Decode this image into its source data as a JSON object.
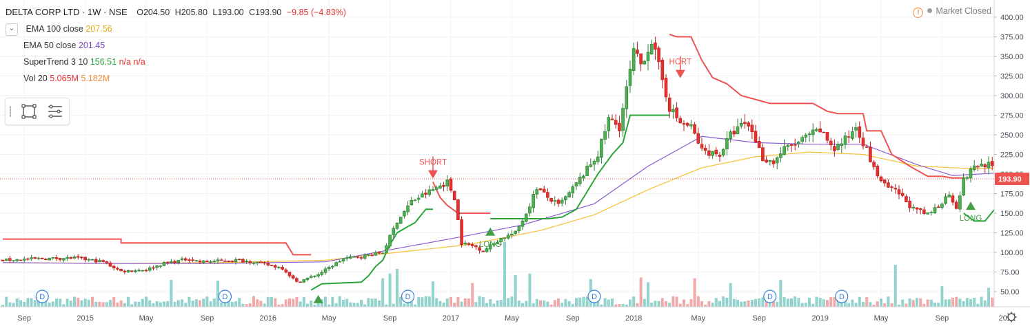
{
  "header": {
    "title": "DELTA CORP LTD · 1W · NSE",
    "open": "O204.50",
    "high": "H205.80",
    "low": "L193.00",
    "close": "C193.90",
    "change": "−9.85 (−4.83%)"
  },
  "indicators": {
    "ema100": {
      "label": "EMA 100 close",
      "value": "207.56"
    },
    "ema50": {
      "label": "EMA 50 close",
      "value": "201.45"
    },
    "supertrend": {
      "label": "SuperTrend 3 10",
      "value": "156.51",
      "na1": "n/a",
      "na2": "n/a"
    },
    "volume": {
      "label": "Vol 20",
      "value1": "5.065M",
      "value2": "5.182M"
    }
  },
  "market_status": {
    "icon": "warning-icon",
    "text": "Market Closed"
  },
  "toolbar": {
    "icons": [
      "drag-grip-icon",
      "rectangle-tool-icon",
      "list-settings-icon"
    ]
  },
  "chart_data": {
    "type": "candlestick",
    "price_axis": {
      "ticks": [
        "400.00",
        "375.00",
        "350.00",
        "325.00",
        "300.00",
        "275.00",
        "250.00",
        "225.00",
        "200.00",
        "175.00",
        "150.00",
        "125.00",
        "100.00",
        "75.00",
        "50.00"
      ],
      "tick_values": [
        400,
        375,
        350,
        325,
        300,
        275,
        250,
        225,
        200,
        175,
        150,
        125,
        100,
        75,
        50
      ],
      "range": [
        35,
        410
      ]
    },
    "time_axis": {
      "labels": [
        "Sep",
        "2015",
        "May",
        "Sep",
        "2016",
        "May",
        "Sep",
        "2017",
        "May",
        "Sep",
        "2018",
        "May",
        "Sep",
        "2019",
        "May",
        "Sep",
        "20"
      ],
      "label_weeks": [
        6,
        23,
        40,
        57,
        74,
        91,
        108,
        125,
        142,
        159,
        176,
        194,
        211,
        228,
        245,
        262,
        279
      ],
      "total_weeks": 285
    },
    "last_price": {
      "value": 193.9,
      "label": "193.90",
      "color": "#ef5350"
    },
    "colors": {
      "up": "#26a69a",
      "up_fill": "#4caf50",
      "down": "#e5312e",
      "ema100": "#f7c133",
      "ema50": "#8c5bd1",
      "supertrend_up": "#2aa43a",
      "supertrend_down": "#ef5350",
      "vol_up": "#80cbc4",
      "vol_down": "#ef9a9a"
    },
    "close_anchors": [
      [
        0,
        90
      ],
      [
        10,
        92
      ],
      [
        20,
        93
      ],
      [
        28,
        88
      ],
      [
        33,
        76
      ],
      [
        40,
        78
      ],
      [
        45,
        86
      ],
      [
        52,
        92
      ],
      [
        55,
        88
      ],
      [
        65,
        90
      ],
      [
        70,
        88
      ],
      [
        78,
        80
      ],
      [
        82,
        62
      ],
      [
        88,
        72
      ],
      [
        95,
        92
      ],
      [
        100,
        95
      ],
      [
        106,
        100
      ],
      [
        110,
        140
      ],
      [
        114,
        165
      ],
      [
        120,
        180
      ],
      [
        124,
        190
      ],
      [
        126,
        170
      ],
      [
        128,
        112
      ],
      [
        132,
        107
      ],
      [
        134,
        102
      ],
      [
        139,
        118
      ],
      [
        143,
        125
      ],
      [
        146,
        150
      ],
      [
        149,
        183
      ],
      [
        152,
        170
      ],
      [
        155,
        160
      ],
      [
        158,
        175
      ],
      [
        162,
        200
      ],
      [
        166,
        225
      ],
      [
        169,
        270
      ],
      [
        172,
        260
      ],
      [
        176,
        355
      ],
      [
        178,
        340
      ],
      [
        181,
        370
      ],
      [
        184,
        320
      ],
      [
        186,
        285
      ],
      [
        189,
        265
      ],
      [
        192,
        260
      ],
      [
        195,
        230
      ],
      [
        200,
        225
      ],
      [
        203,
        250
      ],
      [
        207,
        265
      ],
      [
        209,
        255
      ],
      [
        212,
        220
      ],
      [
        215,
        215
      ],
      [
        218,
        232
      ],
      [
        222,
        240
      ],
      [
        225,
        250
      ],
      [
        228,
        255
      ],
      [
        232,
        232
      ],
      [
        236,
        248
      ],
      [
        238,
        262
      ],
      [
        241,
        230
      ],
      [
        243,
        206
      ],
      [
        246,
        185
      ],
      [
        250,
        175
      ],
      [
        254,
        155
      ],
      [
        258,
        148
      ],
      [
        261,
        160
      ],
      [
        264,
        175
      ],
      [
        266,
        158
      ],
      [
        268,
        192
      ],
      [
        271,
        210
      ],
      [
        275,
        213
      ],
      [
        278,
        194
      ]
    ],
    "ema100": [
      [
        0,
        87
      ],
      [
        30,
        86
      ],
      [
        60,
        87
      ],
      [
        90,
        90
      ],
      [
        110,
        100
      ],
      [
        130,
        110
      ],
      [
        150,
        128
      ],
      [
        165,
        148
      ],
      [
        180,
        180
      ],
      [
        195,
        208
      ],
      [
        210,
        222
      ],
      [
        225,
        228
      ],
      [
        240,
        225
      ],
      [
        255,
        210
      ],
      [
        270,
        207
      ],
      [
        278,
        207.56
      ]
    ],
    "ema50": [
      [
        0,
        87
      ],
      [
        30,
        86
      ],
      [
        60,
        86
      ],
      [
        90,
        88
      ],
      [
        110,
        105
      ],
      [
        128,
        120
      ],
      [
        145,
        135
      ],
      [
        165,
        162
      ],
      [
        180,
        210
      ],
      [
        195,
        248
      ],
      [
        210,
        240
      ],
      [
        225,
        238
      ],
      [
        240,
        238
      ],
      [
        255,
        212
      ],
      [
        265,
        198
      ],
      [
        278,
        201.45
      ]
    ],
    "supertrend": [
      {
        "trend": "down",
        "points": [
          [
            0,
            117
          ],
          [
            33,
            117
          ],
          [
            33,
            112
          ],
          [
            70,
            112
          ],
          [
            79,
            112
          ],
          [
            81,
            97
          ],
          [
            86,
            97
          ]
        ]
      },
      {
        "trend": "up",
        "points": [
          [
            86,
            52
          ],
          [
            89,
            60
          ],
          [
            100,
            62
          ],
          [
            102,
            70
          ],
          [
            104,
            82
          ],
          [
            106,
            90
          ],
          [
            108,
            110
          ],
          [
            110,
            125
          ],
          [
            113,
            133
          ],
          [
            115,
            138
          ],
          [
            118,
            155
          ],
          [
            120,
            155
          ]
        ]
      },
      {
        "trend": "down",
        "points": [
          [
            120,
            190
          ],
          [
            122,
            170
          ],
          [
            124,
            160
          ],
          [
            127,
            150
          ],
          [
            136,
            150
          ]
        ]
      },
      {
        "trend": "up",
        "points": [
          [
            136,
            143
          ],
          [
            152,
            143
          ],
          [
            156,
            145
          ],
          [
            160,
            155
          ],
          [
            164,
            185
          ],
          [
            166,
            200
          ],
          [
            170,
            225
          ],
          [
            173,
            240
          ],
          [
            175,
            275
          ],
          [
            186,
            275
          ]
        ]
      },
      {
        "trend": "down",
        "points": [
          [
            186,
            378
          ],
          [
            188,
            375
          ],
          [
            192,
            375
          ],
          [
            195,
            345
          ],
          [
            198,
            323
          ],
          [
            202,
            315
          ],
          [
            206,
            300
          ],
          [
            214,
            290
          ],
          [
            226,
            290
          ],
          [
            230,
            280
          ],
          [
            233,
            277
          ],
          [
            240,
            277
          ],
          [
            241,
            255
          ],
          [
            245,
            255
          ],
          [
            248,
            225
          ],
          [
            253,
            210
          ],
          [
            258,
            197
          ],
          [
            262,
            197
          ],
          [
            265,
            195
          ],
          [
            268,
            195
          ]
        ]
      },
      {
        "trend": "up",
        "points": [
          [
            268,
            150
          ],
          [
            271,
            140
          ],
          [
            274,
            140
          ],
          [
            277,
            157
          ],
          [
            280,
            157
          ]
        ]
      }
    ],
    "signals": [
      {
        "label": "SHORT",
        "week": 120,
        "price": 196,
        "direction": "down",
        "color": "#ef5350"
      },
      {
        "label": "LONG",
        "week": 136,
        "price": 130,
        "direction": "up",
        "color": "#43a047"
      },
      {
        "label": "HORT",
        "week": 189,
        "price": 324,
        "direction": "down",
        "color": "#ef5350"
      },
      {
        "label": "LONG",
        "week": 270,
        "price": 163,
        "direction": "up",
        "color": "#43a047"
      },
      {
        "label": "LONG",
        "week": 88,
        "price": 44,
        "direction": "up",
        "color": "#43a047"
      }
    ],
    "dividend_markers": {
      "label": "D",
      "weeks": [
        11,
        62,
        113,
        165,
        214,
        234
      ]
    },
    "volume_spikes": [
      [
        47,
        3.4
      ],
      [
        60,
        3.3
      ],
      [
        106,
        3.6
      ],
      [
        108,
        4.2
      ],
      [
        110,
        4.8
      ],
      [
        120,
        3.2
      ],
      [
        131,
        3.0
      ],
      [
        140,
        8.2
      ],
      [
        143,
        4.0
      ],
      [
        147,
        4.2
      ],
      [
        164,
        3.5
      ],
      [
        178,
        3.7
      ],
      [
        180,
        3.1
      ],
      [
        193,
        3.6
      ],
      [
        203,
        3.0
      ],
      [
        217,
        3.4
      ],
      [
        249,
        5.3
      ],
      [
        262,
        2.6
      ],
      [
        275,
        2.4
      ]
    ]
  }
}
